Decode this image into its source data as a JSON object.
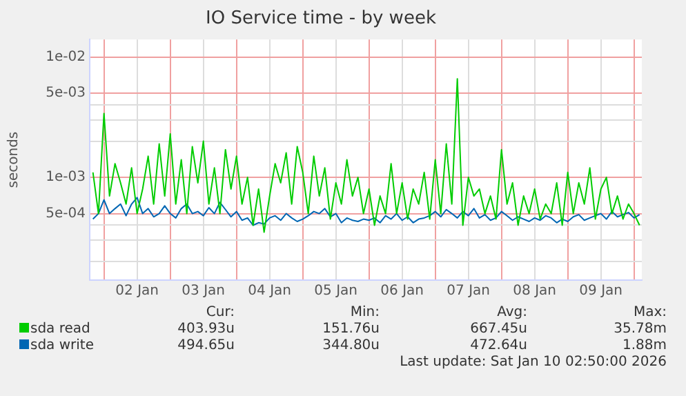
{
  "chart_data": {
    "type": "line",
    "title": "IO Service time - by week",
    "ylabel": "seconds",
    "log": "y",
    "grid": true,
    "legend": "bottom",
    "marker": "none",
    "line_style": "solid",
    "xlim": [
      "2026-01-01T18:50",
      "2026-01-10T02:50"
    ],
    "xticks": [
      {
        "value": "2026-01-02T00:00",
        "label": null
      },
      {
        "value": "2026-01-02T12:00",
        "label": "02 Jan"
      },
      {
        "value": "2026-01-03T00:00",
        "label": null
      },
      {
        "value": "2026-01-03T12:00",
        "label": "03 Jan"
      },
      {
        "value": "2026-01-04T00:00",
        "label": null
      },
      {
        "value": "2026-01-04T12:00",
        "label": "04 Jan"
      },
      {
        "value": "2026-01-05T00:00",
        "label": null
      },
      {
        "value": "2026-01-05T12:00",
        "label": "05 Jan"
      },
      {
        "value": "2026-01-06T00:00",
        "label": null
      },
      {
        "value": "2026-01-06T12:00",
        "label": "06 Jan"
      },
      {
        "value": "2026-01-07T00:00",
        "label": null
      },
      {
        "value": "2026-01-07T12:00",
        "label": "07 Jan"
      },
      {
        "value": "2026-01-08T00:00",
        "label": null
      },
      {
        "value": "2026-01-08T12:00",
        "label": "08 Jan"
      },
      {
        "value": "2026-01-09T00:00",
        "label": null
      },
      {
        "value": "2026-01-09T12:00",
        "label": "09 Jan"
      },
      {
        "value": "2026-01-10T00:00",
        "label": null
      }
    ],
    "ylim": [
      0.00014,
      0.014
    ],
    "yticks": [
      {
        "value": 0.0002,
        "label": null
      },
      {
        "value": 0.0003,
        "label": null
      },
      {
        "value": 0.0004,
        "label": null
      },
      {
        "value": 0.0005,
        "label": "5e-04"
      },
      {
        "value": 0.001,
        "label": "1e-03"
      },
      {
        "value": 0.002,
        "label": null
      },
      {
        "value": 0.003,
        "label": null
      },
      {
        "value": 0.004,
        "label": null
      },
      {
        "value": 0.005,
        "label": "5e-03"
      },
      {
        "value": 0.01,
        "label": "1e-02"
      }
    ],
    "x": [
      "2026-01-01T20:00",
      "2026-01-01T22:00",
      "2026-01-02T00:00",
      "2026-01-02T02:00",
      "2026-01-02T04:00",
      "2026-01-02T06:00",
      "2026-01-02T08:00",
      "2026-01-02T10:00",
      "2026-01-02T12:00",
      "2026-01-02T14:00",
      "2026-01-02T16:00",
      "2026-01-02T18:00",
      "2026-01-02T20:00",
      "2026-01-02T22:00",
      "2026-01-03T00:00",
      "2026-01-03T02:00",
      "2026-01-03T04:00",
      "2026-01-03T06:00",
      "2026-01-03T08:00",
      "2026-01-03T10:00",
      "2026-01-03T12:00",
      "2026-01-03T14:00",
      "2026-01-03T16:00",
      "2026-01-03T18:00",
      "2026-01-03T20:00",
      "2026-01-03T22:00",
      "2026-01-04T00:00",
      "2026-01-04T02:00",
      "2026-01-04T04:00",
      "2026-01-04T06:00",
      "2026-01-04T08:00",
      "2026-01-04T10:00",
      "2026-01-04T12:00",
      "2026-01-04T14:00",
      "2026-01-04T16:00",
      "2026-01-04T18:00",
      "2026-01-04T20:00",
      "2026-01-04T22:00",
      "2026-01-05T00:00",
      "2026-01-05T02:00",
      "2026-01-05T04:00",
      "2026-01-05T06:00",
      "2026-01-05T08:00",
      "2026-01-05T10:00",
      "2026-01-05T12:00",
      "2026-01-05T14:00",
      "2026-01-05T16:00",
      "2026-01-05T18:00",
      "2026-01-05T20:00",
      "2026-01-05T22:00",
      "2026-01-06T00:00",
      "2026-01-06T02:00",
      "2026-01-06T04:00",
      "2026-01-06T06:00",
      "2026-01-06T08:00",
      "2026-01-06T10:00",
      "2026-01-06T12:00",
      "2026-01-06T14:00",
      "2026-01-06T16:00",
      "2026-01-06T18:00",
      "2026-01-06T20:00",
      "2026-01-06T22:00",
      "2026-01-07T00:00",
      "2026-01-07T02:00",
      "2026-01-07T04:00",
      "2026-01-07T06:00",
      "2026-01-07T08:00",
      "2026-01-07T10:00",
      "2026-01-07T12:00",
      "2026-01-07T14:00",
      "2026-01-07T16:00",
      "2026-01-07T18:00",
      "2026-01-07T20:00",
      "2026-01-07T22:00",
      "2026-01-08T00:00",
      "2026-01-08T02:00",
      "2026-01-08T04:00",
      "2026-01-08T06:00",
      "2026-01-08T08:00",
      "2026-01-08T10:00",
      "2026-01-08T12:00",
      "2026-01-08T14:00",
      "2026-01-08T16:00",
      "2026-01-08T18:00",
      "2026-01-08T20:00",
      "2026-01-08T22:00",
      "2026-01-09T00:00",
      "2026-01-09T02:00",
      "2026-01-09T04:00",
      "2026-01-09T06:00",
      "2026-01-09T08:00",
      "2026-01-09T10:00",
      "2026-01-09T12:00",
      "2026-01-09T14:00",
      "2026-01-09T16:00",
      "2026-01-09T18:00",
      "2026-01-09T20:00",
      "2026-01-09T22:00",
      "2026-01-10T00:00",
      "2026-01-10T02:00"
    ],
    "series": [
      {
        "name": "sda read",
        "color": "#00cc00",
        "values": [
          0.0011,
          0.0005,
          0.0034,
          0.0007,
          0.0013,
          0.0009,
          0.0006,
          0.0012,
          0.0005,
          0.0008,
          0.0015,
          0.0006,
          0.0019,
          0.0007,
          0.0023,
          0.0006,
          0.0014,
          0.0005,
          0.0018,
          0.0009,
          0.002,
          0.0006,
          0.0012,
          0.0005,
          0.0017,
          0.0008,
          0.0015,
          0.0006,
          0.001,
          0.0004,
          0.0008,
          0.00035,
          0.0007,
          0.0013,
          0.0009,
          0.0016,
          0.0006,
          0.0018,
          0.0011,
          0.0005,
          0.0015,
          0.0007,
          0.0012,
          0.00045,
          0.0009,
          0.0006,
          0.0014,
          0.0007,
          0.001,
          0.0005,
          0.0008,
          0.0004,
          0.0007,
          0.0005,
          0.0013,
          0.0005,
          0.0009,
          0.00045,
          0.0008,
          0.0006,
          0.0011,
          0.00045,
          0.0014,
          0.0005,
          0.0019,
          0.0006,
          0.0066,
          0.0004,
          0.001,
          0.0007,
          0.0008,
          0.0005,
          0.0007,
          0.00045,
          0.0017,
          0.0006,
          0.0009,
          0.0004,
          0.0007,
          0.0005,
          0.0008,
          0.00045,
          0.0006,
          0.0005,
          0.0009,
          0.0004,
          0.0011,
          0.0005,
          0.0009,
          0.0006,
          0.0012,
          0.00045,
          0.0008,
          0.001,
          0.0005,
          0.0007,
          0.00045,
          0.0006,
          0.0005,
          0.0004
        ]
      },
      {
        "name": "sda write",
        "color": "#0066b3",
        "values": [
          0.00045,
          0.0005,
          0.00065,
          0.0005,
          0.00055,
          0.0006,
          0.00048,
          0.0006,
          0.00068,
          0.0005,
          0.00055,
          0.00047,
          0.0005,
          0.00058,
          0.0005,
          0.00046,
          0.00055,
          0.0006,
          0.0005,
          0.00052,
          0.00048,
          0.00056,
          0.0005,
          0.00062,
          0.00054,
          0.00047,
          0.00052,
          0.00044,
          0.00046,
          0.0004,
          0.00042,
          0.00041,
          0.00046,
          0.00048,
          0.00044,
          0.0005,
          0.00046,
          0.00043,
          0.00045,
          0.00048,
          0.00052,
          0.0005,
          0.00055,
          0.00047,
          0.0005,
          0.00042,
          0.00046,
          0.00044,
          0.00043,
          0.00045,
          0.00044,
          0.00046,
          0.00042,
          0.00048,
          0.00045,
          0.0005,
          0.00044,
          0.00047,
          0.00042,
          0.00045,
          0.00046,
          0.00048,
          0.00052,
          0.00047,
          0.00054,
          0.0005,
          0.00046,
          0.00052,
          0.00048,
          0.00055,
          0.00046,
          0.00049,
          0.00044,
          0.00046,
          0.00052,
          0.00048,
          0.00044,
          0.00047,
          0.00045,
          0.00043,
          0.00046,
          0.00044,
          0.00048,
          0.00046,
          0.00042,
          0.00045,
          0.00043,
          0.00047,
          0.00049,
          0.00044,
          0.00046,
          0.00048,
          0.0005,
          0.00045,
          0.00052,
          0.00047,
          0.00049,
          0.00051,
          0.00046,
          0.00049
        ]
      }
    ],
    "annotations": [
      "Cur:",
      "Min:",
      "Avg:",
      "Max:",
      "403.93u",
      "151.76u",
      "667.45u",
      "35.78m",
      "494.65u",
      "344.80u",
      "472.64u",
      "1.88m",
      "Last update: Sat Jan 10 02:50:00 2026"
    ]
  }
}
